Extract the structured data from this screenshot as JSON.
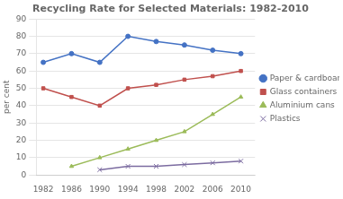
{
  "chart_data": {
    "type": "line",
    "title": "Recycling Rate for Selected Materials: 1982-2010",
    "ylabel": "per cent",
    "x": [
      1982,
      1986,
      1990,
      1994,
      1998,
      2002,
      2006,
      2010
    ],
    "series": [
      {
        "name": "Paper & cardboard",
        "color": "#4472C4",
        "marker": "circle",
        "values": [
          65,
          70,
          65,
          80,
          77,
          75,
          72,
          70
        ]
      },
      {
        "name": "Glass containers",
        "color": "#C0504D",
        "marker": "square",
        "values": [
          50,
          45,
          40,
          50,
          52,
          55,
          57,
          60
        ]
      },
      {
        "name": "Aluminium cans",
        "color": "#9BBB59",
        "marker": "triangle",
        "values": [
          null,
          5,
          10,
          15,
          20,
          25,
          35,
          45
        ]
      },
      {
        "name": "Plastics",
        "color": "#7B6BA0",
        "marker": "x",
        "values": [
          null,
          null,
          3,
          5,
          5,
          6,
          7,
          8
        ]
      }
    ],
    "xlim": [
      1981,
      2012
    ],
    "xticks": [
      1982,
      1986,
      1990,
      1994,
      1998,
      2002,
      2006,
      2010
    ],
    "ylim": [
      0,
      90
    ],
    "yticks": [
      0,
      10,
      20,
      30,
      40,
      50,
      60,
      70,
      80,
      90
    ],
    "grid": "y",
    "legend": "right"
  }
}
